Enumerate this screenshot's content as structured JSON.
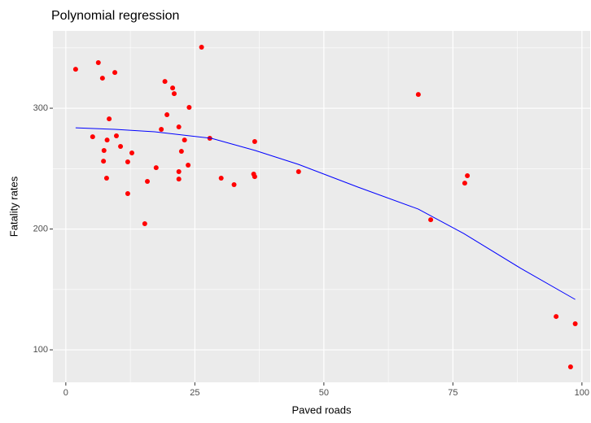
{
  "chart_data": {
    "type": "scatter",
    "title": "Polynomial regression",
    "x_label": "Paved roads",
    "y_label": "Fatality rates",
    "xlim": [
      -2.5,
      101.6
    ],
    "ylim": [
      73.1,
      364
    ],
    "xticks": [
      0,
      25,
      50,
      75,
      100
    ],
    "yticks": [
      100,
      200,
      300
    ],
    "x_minor_breaks": [
      12.5,
      37.5,
      62.5,
      87.5
    ],
    "y_minor_breaks": [
      150,
      250,
      350
    ],
    "grid": true,
    "series": [
      {
        "kind": "points",
        "color": "#ff0000",
        "x": [
          1.9,
          6.3,
          7.1,
          9.5,
          5.2,
          7.4,
          7.3,
          8.0,
          8.4,
          7.9,
          9.8,
          10.6,
          12.0,
          12.8,
          12.0,
          15.3,
          15.8,
          17.5,
          18.5,
          19.2,
          19.6,
          20.7,
          21.0,
          21.9,
          22.4,
          23.0,
          21.9,
          21.9,
          23.7,
          23.9,
          26.3,
          27.9,
          30.1,
          32.6,
          36.4,
          36.6,
          36.6,
          45.1,
          68.3,
          70.7,
          77.3,
          77.8,
          95.0,
          98.7,
          97.8
        ],
        "values": [
          332.3,
          337.7,
          324.9,
          329.6,
          276.4,
          265,
          256.2,
          273.7,
          291.2,
          242.1,
          277.1,
          268.4,
          255.6,
          263,
          229.3,
          204.4,
          239.4,
          250.8,
          282.5,
          322.2,
          294.6,
          316.8,
          312.1,
          284.5,
          264.3,
          273.7,
          247.5,
          241.4,
          252.9,
          300.7,
          350.5,
          275.1,
          242.1,
          236.7,
          245.5,
          243.4,
          272.4,
          247.5,
          311.4,
          207.7,
          238,
          244.1,
          127.6,
          121.6,
          85.9
        ]
      },
      {
        "kind": "line",
        "color": "#0000ff",
        "x": [
          1.9,
          9.5,
          17.2,
          28.2,
          36.7,
          45.1,
          56.6,
          68.3,
          77.1,
          88.2,
          98.7
        ],
        "values": [
          283.8,
          282.5,
          280.5,
          275.1,
          265,
          253.5,
          234.7,
          216.5,
          196.3,
          167.3,
          141.7
        ]
      }
    ]
  }
}
